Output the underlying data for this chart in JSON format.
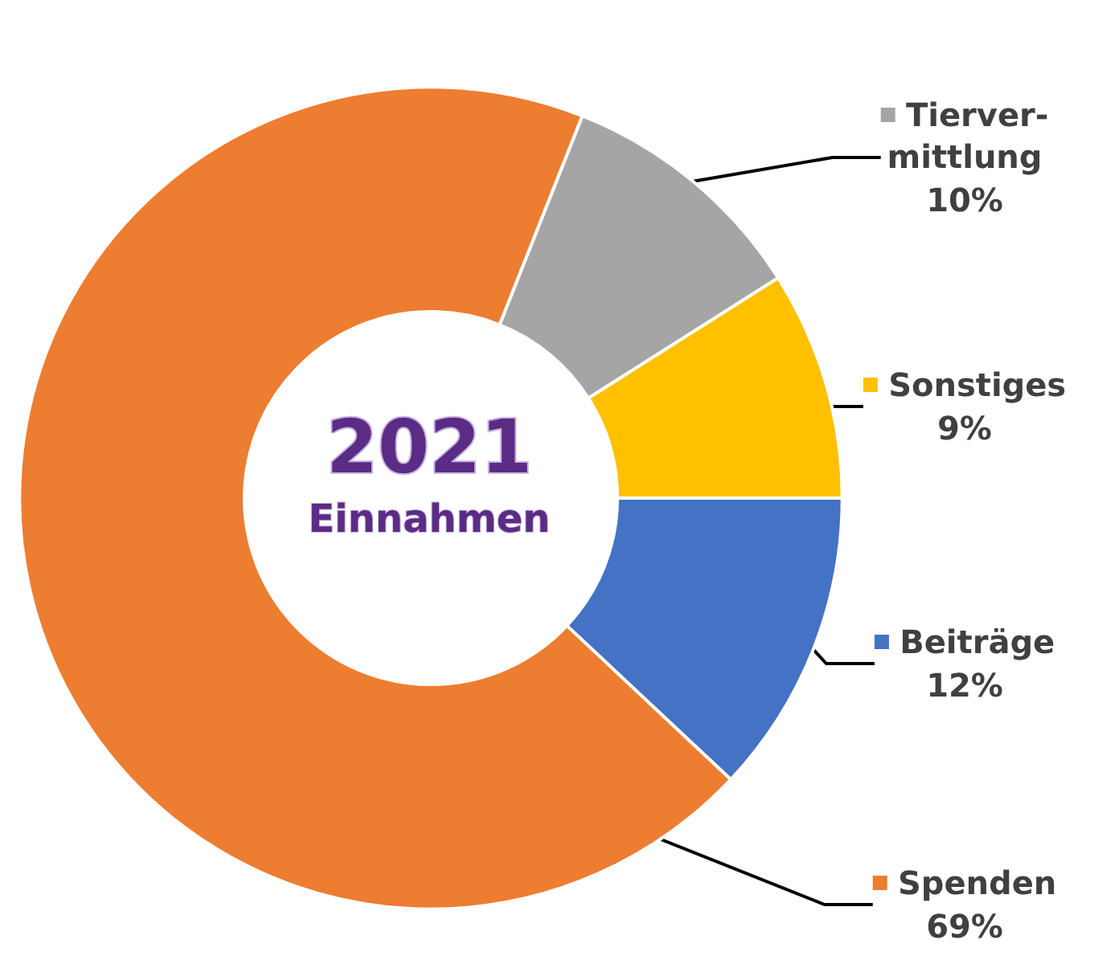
{
  "chart_data": {
    "type": "donut",
    "title": "2021",
    "subtitle": "Einnahmen",
    "categories": [
      "Tierver-\nmittlung",
      "Sonstiges",
      "Beiträge",
      "Spenden"
    ],
    "values": [
      10,
      9,
      12,
      69
    ],
    "colors": [
      "#a5a5a5",
      "#ffc000",
      "#4472c4",
      "#ed7d31"
    ],
    "value_labels": [
      "10%",
      "9%",
      "12%",
      "69%"
    ],
    "legend": "right"
  }
}
